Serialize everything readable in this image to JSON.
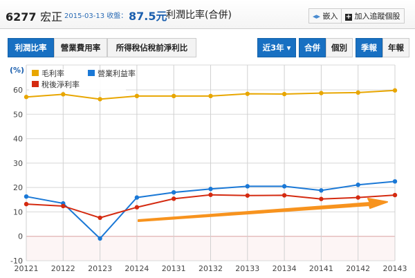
{
  "header": {
    "code": "6277",
    "name": "宏正",
    "date": "2015-03-13 收盤：",
    "price": "87.5元",
    "title": "利潤比率(合併)",
    "embed": "嵌入",
    "track": "加入追蹤個股"
  },
  "tabs": [
    "利潤比率",
    "營業費用率",
    "所得稅佔稅前淨利比"
  ],
  "period": "近3年 ▾",
  "scope": [
    "合併",
    "個別"
  ],
  "freq": [
    "季報",
    "年報"
  ],
  "colors": {
    "gross": "#e8a600",
    "op": "#1a78d6",
    "net": "#d42a10",
    "arrow": "#f7931e"
  },
  "chart_data": {
    "type": "line",
    "ylabel": "(%)",
    "ylim": [
      -10,
      60
    ],
    "yticks": [
      60,
      50,
      40,
      30,
      20,
      10,
      0,
      -10
    ],
    "categories": [
      "20121",
      "20122",
      "20123",
      "20124",
      "20131",
      "20132",
      "20133",
      "20134",
      "20141",
      "20142",
      "20143"
    ],
    "series": [
      {
        "name": "毛利率",
        "key": "gross",
        "values": [
          57.1,
          58.2,
          56.2,
          57.5,
          57.5,
          57.5,
          58.4,
          58.3,
          58.7,
          58.9,
          59.8
        ]
      },
      {
        "name": "營業利益率",
        "key": "op",
        "values": [
          16.3,
          13.5,
          -0.9,
          15.9,
          18.0,
          19.4,
          20.5,
          20.5,
          18.8,
          21.1,
          22.5
        ]
      },
      {
        "name": "稅後淨利率",
        "key": "net",
        "values": [
          13.2,
          12.4,
          7.6,
          11.9,
          15.4,
          17.0,
          16.7,
          16.8,
          15.3,
          15.9,
          16.9
        ]
      }
    ],
    "legend": "top-left"
  }
}
